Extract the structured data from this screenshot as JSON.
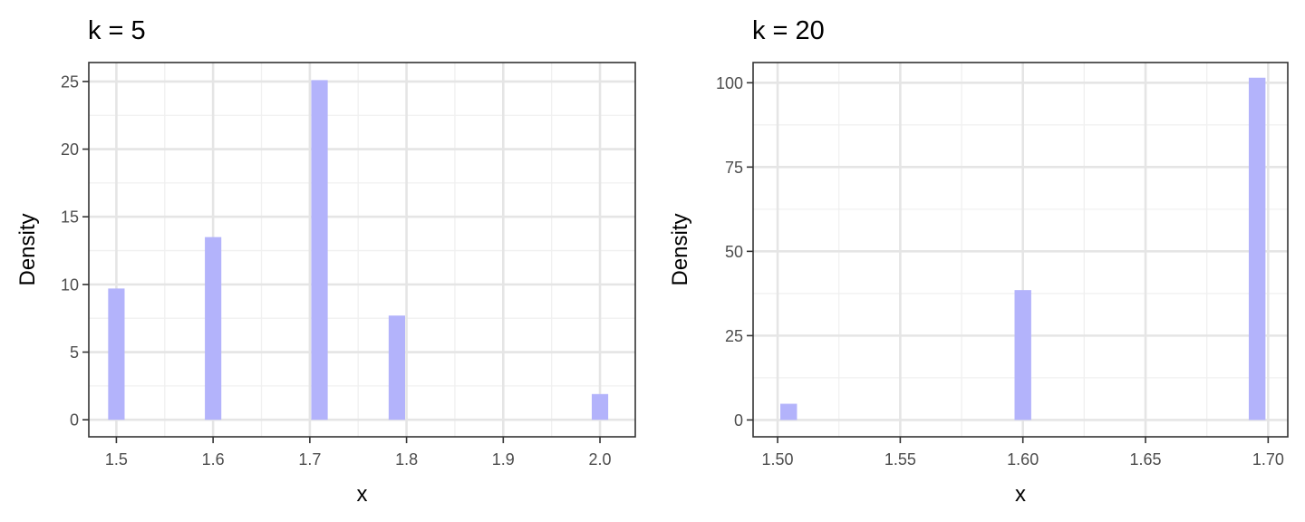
{
  "colors": {
    "bar_fill": "#b3b3fb",
    "grid_major": "#e5e5e5",
    "grid_minor": "#f0f0f0",
    "panel_border": "#333333",
    "tick_text": "#4d4d4d"
  },
  "chart_data": [
    {
      "type": "bar",
      "title": "k = 5",
      "xlabel": "x",
      "ylabel": "Density",
      "grid": true,
      "x_ticks": [
        1.5,
        1.6,
        1.7,
        1.8,
        1.9,
        2.0
      ],
      "x_tick_labels": [
        "1.5",
        "1.6",
        "1.7",
        "1.8",
        "1.9",
        "2.0"
      ],
      "y_ticks": [
        0,
        5,
        10,
        15,
        20,
        25
      ],
      "y_tick_labels": [
        "0",
        "5",
        "10",
        "15",
        "20",
        "25"
      ],
      "xlim": [
        1.4715,
        2.0365
      ],
      "ylim": [
        -1.26,
        26.4
      ],
      "bar_width": 0.017,
      "x": [
        1.5,
        1.6,
        1.71,
        1.79,
        2.0
      ],
      "values": [
        9.7,
        13.5,
        25.1,
        7.7,
        1.9
      ]
    },
    {
      "type": "bar",
      "title": "k = 20",
      "xlabel": "x",
      "ylabel": "Density",
      "grid": true,
      "x_ticks": [
        1.5,
        1.55,
        1.6,
        1.65,
        1.7
      ],
      "x_tick_labels": [
        "1.50",
        "1.55",
        "1.60",
        "1.65",
        "1.70"
      ],
      "y_ticks": [
        0,
        25,
        50,
        75,
        100
      ],
      "y_tick_labels": [
        "0",
        "25",
        "50",
        "75",
        "100"
      ],
      "xlim": [
        1.49,
        1.708
      ],
      "ylim": [
        -5,
        106
      ],
      "bar_width": 0.0068,
      "x": [
        1.5045,
        1.6,
        1.6955
      ],
      "values": [
        4.8,
        38.5,
        101.5
      ]
    }
  ]
}
